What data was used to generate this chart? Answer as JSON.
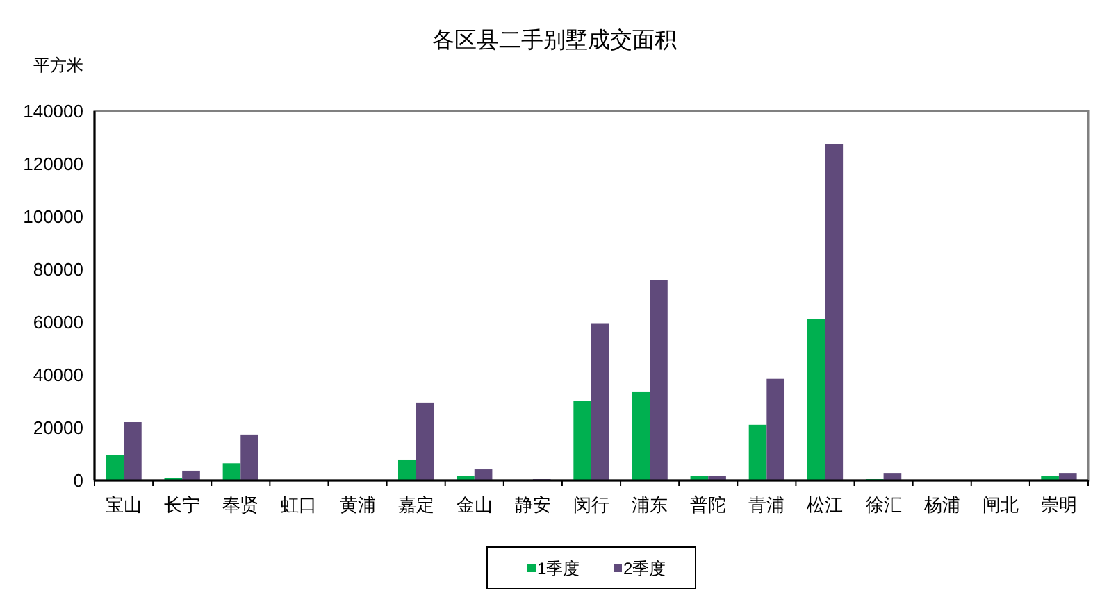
{
  "chart_data": {
    "type": "bar",
    "title": "各区县二手别墅成交面积",
    "ylabel": "平方米",
    "categories": [
      "宝山",
      "长宁",
      "奉贤",
      "虹口",
      "黄浦",
      "嘉定",
      "金山",
      "静安",
      "闵行",
      "浦东",
      "普陀",
      "青浦",
      "松江",
      "徐汇",
      "杨浦",
      "闸北",
      "崇明"
    ],
    "series": [
      {
        "name": "1季度",
        "color": "#00b050",
        "values": [
          9700,
          1000,
          6500,
          0,
          0,
          7900,
          1600,
          0,
          30000,
          33700,
          1600,
          21100,
          61100,
          500,
          0,
          0,
          1600
        ]
      },
      {
        "name": "2季度",
        "color": "#604a7b",
        "values": [
          22100,
          3700,
          17400,
          0,
          0,
          29500,
          4200,
          500,
          59600,
          75900,
          1600,
          38500,
          127600,
          2600,
          0,
          0,
          2600
        ]
      }
    ],
    "ylim": [
      0,
      140000
    ],
    "yticks": [
      0,
      20000,
      40000,
      60000,
      80000,
      100000,
      120000,
      140000
    ],
    "legend": "bottom",
    "grid": false
  }
}
